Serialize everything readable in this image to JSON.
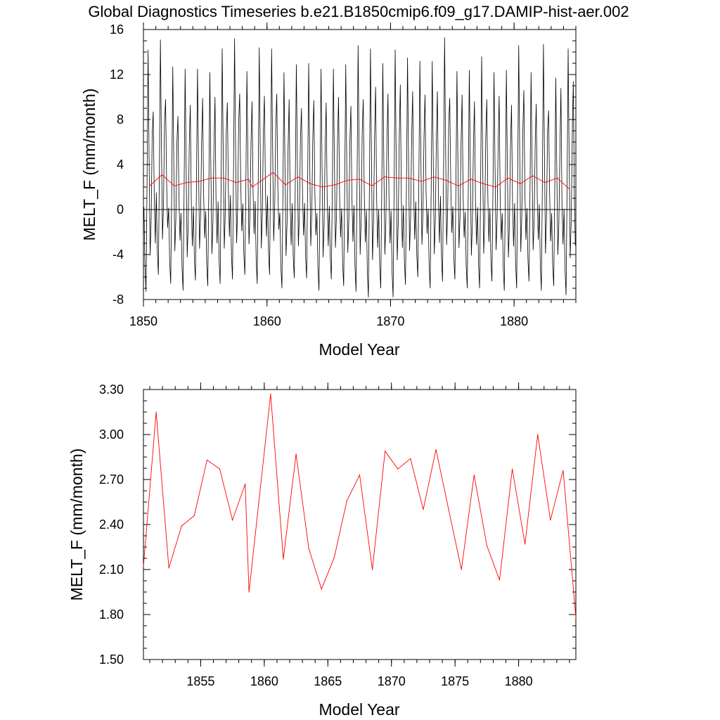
{
  "title": "Global Diagnostics Timeseries b.e21.B1850cmip6.f09_g17.DAMIP-hist-aer.002",
  "colors": {
    "monthly": "#000000",
    "annual": "#ff0000"
  },
  "chart_data": [
    {
      "type": "line",
      "xlabel": "Model Year",
      "ylabel": "MELT_F (mm/month)",
      "xlim": [
        1850,
        1885
      ],
      "ylim": [
        -8,
        16
      ],
      "xticks": [
        1850,
        1860,
        1870,
        1880
      ],
      "xtick_labels": [
        "1850",
        "1860",
        "1870",
        "1880"
      ],
      "yticks": [
        -8,
        -4,
        0,
        4,
        8,
        12,
        16
      ],
      "ytick_labels": [
        "-8",
        "-4",
        "0",
        "4",
        "8",
        "12",
        "16"
      ],
      "zero_line": true,
      "series": [
        {
          "color": "#000000",
          "seasonal_min": [
            -7.3,
            -5.8,
            -6.6,
            -7.2,
            -6.3,
            -6.8,
            -6.6,
            -6.2,
            -5.8,
            -6.6,
            -5.8,
            -7.0,
            -6.1,
            -6.1,
            -7.2,
            -6.2,
            -6.8,
            -7.3,
            -7.8,
            -7.0,
            -7.8,
            -6.7,
            -6.0,
            -7.0,
            -6.4,
            -6.2,
            -7.0,
            -7.0,
            -6.4,
            -7.2,
            -7.0,
            -6.4,
            -7.2,
            -6.8,
            -7.6
          ],
          "seasonal_max": [
            14.2,
            15.1,
            12.7,
            12.5,
            12.5,
            12.2,
            14.3,
            15.2,
            12.3,
            14.4,
            14.3,
            12.2,
            12.9,
            13.0,
            12.5,
            12.5,
            12.9,
            14.6,
            14.3,
            13.0,
            14.2,
            13.5,
            13.2,
            13.2,
            15.3,
            12.3,
            12.4,
            13.6,
            12.2,
            12.4,
            14.6,
            12.2,
            14.7,
            11.7,
            14.3
          ],
          "sub_peak": [
            8.7,
            9.8,
            8.3,
            9.3,
            9.9,
            10.0,
            9.5,
            10.3,
            9.6,
            10.1,
            10.3,
            9.8,
            9.0,
            9.7,
            9.5,
            10.0,
            9.2,
            9.8,
            10.9,
            10.3,
            11.1,
            10.5,
            10.2,
            10.5,
            9.9,
            10.2,
            9.6,
            9.8,
            10.1,
            9.3,
            10.6,
            9.4,
            8.8,
            10.8,
            11.4
          ]
        },
        {
          "color": "#ff0000",
          "x": [
            1850.5,
            1851.5,
            1852.5,
            1853.5,
            1854.5,
            1855.5,
            1856.5,
            1857.5,
            1858.5,
            1858.8,
            1860.5,
            1861.5,
            1862.5,
            1863.5,
            1864.5,
            1865.5,
            1866.5,
            1867.5,
            1868.5,
            1869.5,
            1870.5,
            1871.5,
            1872.5,
            1873.5,
            1874.5,
            1875.5,
            1876.5,
            1877.5,
            1878.5,
            1879.5,
            1880.5,
            1881.5,
            1882.5,
            1883.5,
            1884.5
          ],
          "values": [
            2.1,
            3.1,
            2.1,
            2.4,
            2.5,
            2.8,
            2.8,
            2.4,
            2.7,
            2.0,
            3.3,
            2.2,
            2.9,
            2.3,
            2.0,
            2.2,
            2.6,
            2.7,
            2.1,
            2.9,
            2.8,
            2.8,
            2.5,
            2.9,
            2.6,
            2.1,
            2.7,
            2.3,
            2.0,
            2.8,
            2.3,
            3.0,
            2.4,
            2.8,
            1.8
          ]
        }
      ]
    },
    {
      "type": "line",
      "xlabel": "Model Year",
      "ylabel": "MELT_F (mm/month)",
      "xlim": [
        1850.5,
        1884.5
      ],
      "ylim": [
        1.5,
        3.3
      ],
      "xticks": [
        1855,
        1860,
        1865,
        1870,
        1875,
        1880
      ],
      "xtick_labels": [
        "1855",
        "1860",
        "1865",
        "1870",
        "1875",
        "1880"
      ],
      "yticks": [
        1.5,
        1.8,
        2.1,
        2.4,
        2.7,
        3.0,
        3.3
      ],
      "ytick_labels": [
        "1.50",
        "1.80",
        "2.10",
        "2.40",
        "2.70",
        "3.00",
        "3.30"
      ],
      "series": [
        {
          "color": "#ff0000",
          "x": [
            1850.5,
            1851.5,
            1852.5,
            1853.5,
            1854.5,
            1855.5,
            1856.5,
            1857.5,
            1858.5,
            1858.8,
            1860.5,
            1861.5,
            1862.5,
            1863.5,
            1864.5,
            1865.5,
            1866.5,
            1867.5,
            1868.5,
            1869.5,
            1870.5,
            1871.5,
            1872.5,
            1873.5,
            1874.5,
            1875.5,
            1876.5,
            1877.5,
            1878.5,
            1879.5,
            1880.5,
            1881.5,
            1882.5,
            1883.5,
            1884.5
          ],
          "values": [
            2.12,
            3.15,
            2.11,
            2.39,
            2.46,
            2.83,
            2.77,
            2.43,
            2.67,
            1.95,
            3.27,
            2.17,
            2.87,
            2.24,
            1.97,
            2.18,
            2.56,
            2.73,
            2.1,
            2.89,
            2.77,
            2.84,
            2.5,
            2.9,
            2.5,
            2.1,
            2.73,
            2.26,
            2.03,
            2.77,
            2.27,
            3.0,
            2.43,
            2.76,
            1.78
          ]
        }
      ]
    }
  ]
}
